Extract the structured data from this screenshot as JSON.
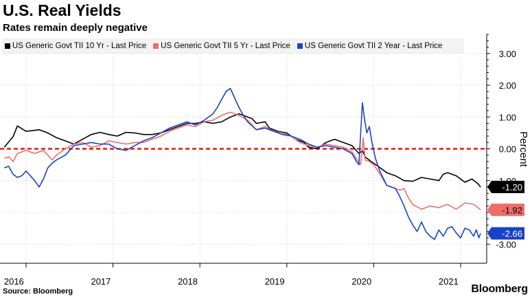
{
  "header": {
    "title": "U.S. Real Yields",
    "subtitle": "Rates remain deeply negative"
  },
  "footer": {
    "source": "Source: Bloomberg",
    "brand": "Bloomberg"
  },
  "chart_data": {
    "type": "line",
    "title": "U.S. Real Yields",
    "subtitle": "Rates remain deeply negative",
    "ylabel": "Percent",
    "y_axis_side": "right",
    "ylim": [
      -3.6,
      3.6
    ],
    "xlim": [
      2015.95,
      2021.55
    ],
    "grid": "dotted vertical and horizontal",
    "legend_position": "top",
    "y_ticks": [
      {
        "value": 3,
        "label": "3.00"
      },
      {
        "value": 2,
        "label": "2.00"
      },
      {
        "value": 1,
        "label": "1.00"
      },
      {
        "value": 0,
        "label": "0.00"
      },
      {
        "value": -1,
        "label": "-1.00"
      },
      {
        "value": -2,
        "label": ""
      },
      {
        "value": -3,
        "label": "-3.00"
      }
    ],
    "x_ticks": [
      {
        "value": 2016.0,
        "label": "2016"
      },
      {
        "value": 2017.0,
        "label": "2017"
      },
      {
        "value": 2018.0,
        "label": "2018"
      },
      {
        "value": 2019.0,
        "label": "2019"
      },
      {
        "value": 2020.0,
        "label": "2020"
      },
      {
        "value": 2021.0,
        "label": "2021"
      }
    ],
    "gridlines_x": [
      2016.25,
      2017.25,
      2018.25,
      2019.25,
      2020.25,
      2021.25
    ],
    "reference_line": {
      "value": 0,
      "color": "#e8170e",
      "style": "dashed"
    },
    "series": [
      {
        "name": "US Generic Govt TII 10 Yr - Last Price",
        "color": "#000000",
        "last_value_label": "-1.20",
        "points": [
          [
            2016.0,
            0.05
          ],
          [
            2016.1,
            0.38
          ],
          [
            2016.15,
            0.72
          ],
          [
            2016.25,
            0.55
          ],
          [
            2016.4,
            0.6
          ],
          [
            2016.5,
            0.5
          ],
          [
            2016.6,
            0.35
          ],
          [
            2016.7,
            0.25
          ],
          [
            2016.8,
            0.15
          ],
          [
            2016.9,
            0.3
          ],
          [
            2017.0,
            0.45
          ],
          [
            2017.1,
            0.52
          ],
          [
            2017.2,
            0.45
          ],
          [
            2017.3,
            0.4
          ],
          [
            2017.4,
            0.52
          ],
          [
            2017.5,
            0.5
          ],
          [
            2017.6,
            0.45
          ],
          [
            2017.7,
            0.45
          ],
          [
            2017.8,
            0.5
          ],
          [
            2017.9,
            0.6
          ],
          [
            2018.0,
            0.7
          ],
          [
            2018.1,
            0.8
          ],
          [
            2018.2,
            0.8
          ],
          [
            2018.3,
            0.85
          ],
          [
            2018.4,
            0.8
          ],
          [
            2018.5,
            0.85
          ],
          [
            2018.6,
            1.0
          ],
          [
            2018.7,
            1.1
          ],
          [
            2018.75,
            1.05
          ],
          [
            2018.85,
            0.95
          ],
          [
            2018.9,
            0.8
          ],
          [
            2019.0,
            0.85
          ],
          [
            2019.05,
            0.65
          ],
          [
            2019.15,
            0.55
          ],
          [
            2019.25,
            0.5
          ],
          [
            2019.35,
            0.3
          ],
          [
            2019.45,
            0.2
          ],
          [
            2019.5,
            0.05
          ],
          [
            2019.6,
            0.0
          ],
          [
            2019.7,
            0.2
          ],
          [
            2019.8,
            0.3
          ],
          [
            2019.9,
            0.2
          ],
          [
            2020.0,
            0.1
          ],
          [
            2020.08,
            -0.15
          ],
          [
            2020.12,
            -0.05
          ],
          [
            2020.15,
            -0.25
          ],
          [
            2020.22,
            -0.4
          ],
          [
            2020.3,
            -0.55
          ],
          [
            2020.4,
            -0.75
          ],
          [
            2020.5,
            -0.85
          ],
          [
            2020.6,
            -1.0
          ],
          [
            2020.7,
            -1.02
          ],
          [
            2020.8,
            -0.9
          ],
          [
            2020.9,
            -0.95
          ],
          [
            2021.0,
            -1.0
          ],
          [
            2021.05,
            -0.8
          ],
          [
            2021.1,
            -0.75
          ],
          [
            2021.2,
            -0.85
          ],
          [
            2021.3,
            -1.05
          ],
          [
            2021.38,
            -0.95
          ],
          [
            2021.45,
            -1.1
          ],
          [
            2021.48,
            -1.2
          ]
        ]
      },
      {
        "name": "US Generic Govt TII 5 Yr - Last Price",
        "color": "#f06c66",
        "last_value_label": "-1.92",
        "points": [
          [
            2016.0,
            -0.3
          ],
          [
            2016.05,
            -0.25
          ],
          [
            2016.1,
            -0.4
          ],
          [
            2016.15,
            -0.15
          ],
          [
            2016.25,
            -0.05
          ],
          [
            2016.35,
            -0.15
          ],
          [
            2016.45,
            -0.05
          ],
          [
            2016.55,
            -0.35
          ],
          [
            2016.6,
            -0.2
          ],
          [
            2016.7,
            0.0
          ],
          [
            2016.8,
            0.15
          ],
          [
            2016.9,
            0.2
          ],
          [
            2017.0,
            0.05
          ],
          [
            2017.1,
            0.1
          ],
          [
            2017.2,
            0.25
          ],
          [
            2017.3,
            0.2
          ],
          [
            2017.4,
            0.15
          ],
          [
            2017.5,
            0.2
          ],
          [
            2017.6,
            0.2
          ],
          [
            2017.7,
            0.3
          ],
          [
            2017.8,
            0.4
          ],
          [
            2017.9,
            0.55
          ],
          [
            2018.0,
            0.65
          ],
          [
            2018.1,
            0.75
          ],
          [
            2018.2,
            0.7
          ],
          [
            2018.3,
            0.85
          ],
          [
            2018.4,
            0.9
          ],
          [
            2018.5,
            1.05
          ],
          [
            2018.6,
            1.15
          ],
          [
            2018.7,
            1.05
          ],
          [
            2018.8,
            0.9
          ],
          [
            2018.9,
            0.6
          ],
          [
            2019.0,
            0.7
          ],
          [
            2019.1,
            0.55
          ],
          [
            2019.2,
            0.5
          ],
          [
            2019.3,
            0.4
          ],
          [
            2019.4,
            0.2
          ],
          [
            2019.5,
            0.1
          ],
          [
            2019.6,
            0.05
          ],
          [
            2019.7,
            0.15
          ],
          [
            2019.8,
            0.1
          ],
          [
            2019.9,
            0.05
          ],
          [
            2020.0,
            -0.1
          ],
          [
            2020.06,
            -0.35
          ],
          [
            2020.1,
            -0.5
          ],
          [
            2020.13,
            0.35
          ],
          [
            2020.15,
            -0.35
          ],
          [
            2020.2,
            -0.4
          ],
          [
            2020.25,
            -0.5
          ],
          [
            2020.3,
            -0.7
          ],
          [
            2020.4,
            -1.15
          ],
          [
            2020.5,
            -1.25
          ],
          [
            2020.55,
            -1.3
          ],
          [
            2020.6,
            -1.25
          ],
          [
            2020.65,
            -1.55
          ],
          [
            2020.7,
            -1.75
          ],
          [
            2020.8,
            -1.9
          ],
          [
            2020.9,
            -1.8
          ],
          [
            2021.0,
            -1.85
          ],
          [
            2021.1,
            -1.75
          ],
          [
            2021.2,
            -1.9
          ],
          [
            2021.3,
            -1.7
          ],
          [
            2021.4,
            -1.75
          ],
          [
            2021.45,
            -1.85
          ],
          [
            2021.48,
            -1.92
          ]
        ]
      },
      {
        "name": "US Generic Govt TII 2 Year - Last Price",
        "color": "#1642c8",
        "last_value_label": "-2.66",
        "points": [
          [
            2016.0,
            -0.6
          ],
          [
            2016.05,
            -0.55
          ],
          [
            2016.1,
            -0.8
          ],
          [
            2016.15,
            -0.9
          ],
          [
            2016.2,
            -0.85
          ],
          [
            2016.25,
            -0.7
          ],
          [
            2016.3,
            -0.85
          ],
          [
            2016.35,
            -1.0
          ],
          [
            2016.4,
            -1.2
          ],
          [
            2016.45,
            -0.95
          ],
          [
            2016.5,
            -0.6
          ],
          [
            2016.55,
            -0.45
          ],
          [
            2016.6,
            -0.35
          ],
          [
            2016.7,
            -0.2
          ],
          [
            2016.8,
            0.1
          ],
          [
            2016.9,
            0.15
          ],
          [
            2017.0,
            0.2
          ],
          [
            2017.1,
            0.15
          ],
          [
            2017.2,
            0.15
          ],
          [
            2017.3,
            0.0
          ],
          [
            2017.4,
            -0.05
          ],
          [
            2017.5,
            0.1
          ],
          [
            2017.6,
            0.25
          ],
          [
            2017.7,
            0.35
          ],
          [
            2017.8,
            0.5
          ],
          [
            2017.9,
            0.65
          ],
          [
            2018.0,
            0.75
          ],
          [
            2018.1,
            0.85
          ],
          [
            2018.2,
            0.75
          ],
          [
            2018.3,
            0.9
          ],
          [
            2018.4,
            1.1
          ],
          [
            2018.45,
            1.3
          ],
          [
            2018.5,
            1.55
          ],
          [
            2018.55,
            1.8
          ],
          [
            2018.6,
            1.9
          ],
          [
            2018.65,
            1.6
          ],
          [
            2018.7,
            1.3
          ],
          [
            2018.75,
            1.05
          ],
          [
            2018.8,
            0.85
          ],
          [
            2018.9,
            0.6
          ],
          [
            2019.0,
            0.65
          ],
          [
            2019.1,
            0.55
          ],
          [
            2019.2,
            0.45
          ],
          [
            2019.3,
            0.4
          ],
          [
            2019.4,
            0.3
          ],
          [
            2019.5,
            0.15
          ],
          [
            2019.6,
            0.05
          ],
          [
            2019.7,
            0.1
          ],
          [
            2019.8,
            0.05
          ],
          [
            2019.9,
            0.0
          ],
          [
            2020.0,
            -0.15
          ],
          [
            2020.05,
            -0.4
          ],
          [
            2020.08,
            -0.5
          ],
          [
            2020.1,
            0.5
          ],
          [
            2020.12,
            1.45
          ],
          [
            2020.14,
            1.0
          ],
          [
            2020.17,
            0.5
          ],
          [
            2020.2,
            0.7
          ],
          [
            2020.23,
            0.2
          ],
          [
            2020.27,
            -0.3
          ],
          [
            2020.32,
            -0.7
          ],
          [
            2020.4,
            -1.15
          ],
          [
            2020.5,
            -1.25
          ],
          [
            2020.55,
            -1.5
          ],
          [
            2020.6,
            -1.8
          ],
          [
            2020.65,
            -2.15
          ],
          [
            2020.7,
            -2.4
          ],
          [
            2020.75,
            -2.6
          ],
          [
            2020.8,
            -2.3
          ],
          [
            2020.85,
            -2.6
          ],
          [
            2020.9,
            -2.75
          ],
          [
            2020.95,
            -2.85
          ],
          [
            2021.0,
            -2.55
          ],
          [
            2021.05,
            -2.75
          ],
          [
            2021.1,
            -2.5
          ],
          [
            2021.15,
            -2.45
          ],
          [
            2021.2,
            -2.65
          ],
          [
            2021.25,
            -2.8
          ],
          [
            2021.3,
            -2.5
          ],
          [
            2021.35,
            -2.55
          ],
          [
            2021.4,
            -2.75
          ],
          [
            2021.43,
            -2.55
          ],
          [
            2021.46,
            -2.8
          ],
          [
            2021.48,
            -2.66
          ]
        ]
      }
    ]
  }
}
